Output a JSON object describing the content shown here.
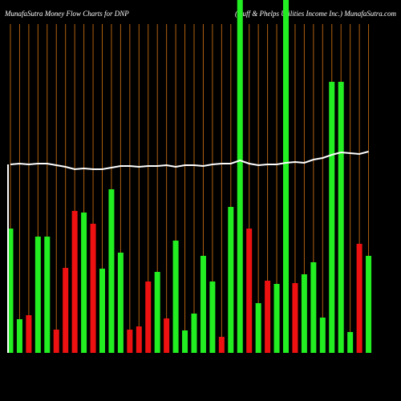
{
  "chart_data": {
    "type": "bar",
    "title": "MunafaSutra  Money Flow  Charts for DNP",
    "subtitle": "(Duff & Phelps Utilities Income Inc.) MunafaSutra.com",
    "ylim": [
      0,
      440
    ],
    "values": [
      155,
      42,
      47,
      145,
      145,
      29,
      106,
      177,
      175,
      161,
      105,
      204,
      125,
      29,
      33,
      89,
      101,
      43,
      140,
      28,
      49,
      121,
      89,
      20,
      182,
      460,
      155,
      62,
      90,
      86,
      460,
      87,
      98,
      113,
      44,
      338,
      338,
      26,
      136,
      121
    ],
    "colors": [
      "#22ee22",
      "#22ee22",
      "#ee1111",
      "#22ee22",
      "#22ee22",
      "#ee1111",
      "#ee1111",
      "#ee1111",
      "#22ee22",
      "#ee1111",
      "#22ee22",
      "#22ee22",
      "#22ee22",
      "#ee1111",
      "#ee1111",
      "#ee1111",
      "#22ee22",
      "#ee1111",
      "#22ee22",
      "#22ee22",
      "#22ee22",
      "#22ee22",
      "#22ee22",
      "#ee1111",
      "#22ee22",
      "#22ee22",
      "#ee1111",
      "#22ee22",
      "#ee1111",
      "#22ee22",
      "#22ee22",
      "#ee1111",
      "#22ee22",
      "#22ee22",
      "#22ee22",
      "#22ee22",
      "#22ee22",
      "#22ee22",
      "#ee1111",
      "#22ee22"
    ],
    "line": {
      "color": "#ffffff",
      "values": [
        235,
        236,
        235,
        236,
        236,
        234,
        232,
        229,
        230,
        229,
        229,
        231,
        233,
        233,
        232,
        233,
        233,
        234,
        232,
        234,
        234,
        233,
        235,
        236,
        236,
        240,
        236,
        234,
        235,
        235,
        237,
        238,
        237,
        241,
        243,
        247,
        250,
        249,
        248,
        251
      ]
    },
    "grid_color": "#b06010"
  }
}
